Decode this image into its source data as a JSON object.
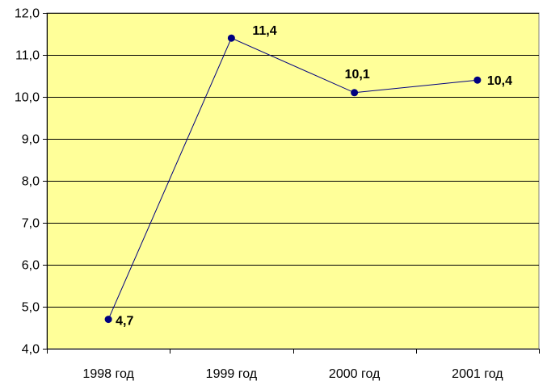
{
  "chart_data": {
    "type": "line",
    "title": "",
    "xlabel": "",
    "ylabel": "",
    "categories": [
      "1998 год",
      "1999 год",
      "2000 год",
      "2001 год"
    ],
    "series": [
      {
        "values": [
          4.7,
          11.4,
          10.1,
          10.4
        ],
        "labels": [
          "4,7",
          "11,4",
          "10,1",
          "10,4"
        ]
      }
    ],
    "ylim": [
      4.0,
      12.0
    ],
    "yticks": [
      4.0,
      5.0,
      6.0,
      7.0,
      8.0,
      9.0,
      10.0,
      11.0,
      12.0
    ],
    "ytick_labels": [
      "4,0",
      "5,0",
      "6,0",
      "7,0",
      "8,0",
      "9,0",
      "10,0",
      "11,0",
      "12,0"
    ],
    "grid": true,
    "legend": "none",
    "colors": {
      "plot_background": "#FFFF99",
      "line": "#000080",
      "marker": "#000080",
      "grid": "#000000"
    }
  }
}
